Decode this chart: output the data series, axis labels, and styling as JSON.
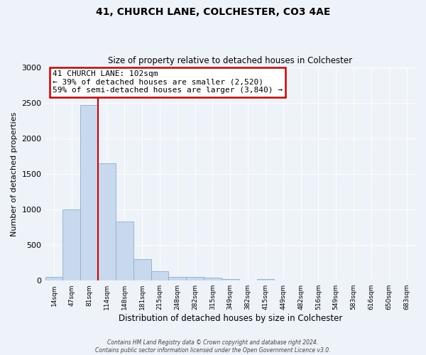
{
  "title": "41, CHURCH LANE, COLCHESTER, CO3 4AE",
  "subtitle": "Size of property relative to detached houses in Colchester",
  "xlabel": "Distribution of detached houses by size in Colchester",
  "ylabel": "Number of detached properties",
  "bar_color": "#c9d9ed",
  "bar_edge_color": "#8ab0d0",
  "categories": [
    "14sqm",
    "47sqm",
    "81sqm",
    "114sqm",
    "148sqm",
    "181sqm",
    "215sqm",
    "248sqm",
    "282sqm",
    "315sqm",
    "349sqm",
    "382sqm",
    "415sqm",
    "449sqm",
    "482sqm",
    "516sqm",
    "549sqm",
    "583sqm",
    "616sqm",
    "650sqm",
    "683sqm"
  ],
  "values": [
    50,
    1000,
    2470,
    1650,
    830,
    300,
    130,
    55,
    55,
    45,
    20,
    0,
    20,
    0,
    0,
    0,
    0,
    0,
    0,
    0,
    0
  ],
  "ylim": [
    0,
    3000
  ],
  "yticks": [
    0,
    500,
    1000,
    1500,
    2000,
    2500,
    3000
  ],
  "annotation_title": "41 CHURCH LANE: 102sqm",
  "annotation_line1": "← 39% of detached houses are smaller (2,520)",
  "annotation_line2": "59% of semi-detached houses are larger (3,840) →",
  "annotation_box_color": "#ffffff",
  "annotation_box_edge_color": "#cc0000",
  "red_line_color": "#cc0000",
  "background_color": "#eef2f9",
  "grid_color": "#ffffff",
  "footer_line1": "Contains HM Land Registry data © Crown copyright and database right 2024.",
  "footer_line2": "Contains public sector information licensed under the Open Government Licence v3.0."
}
